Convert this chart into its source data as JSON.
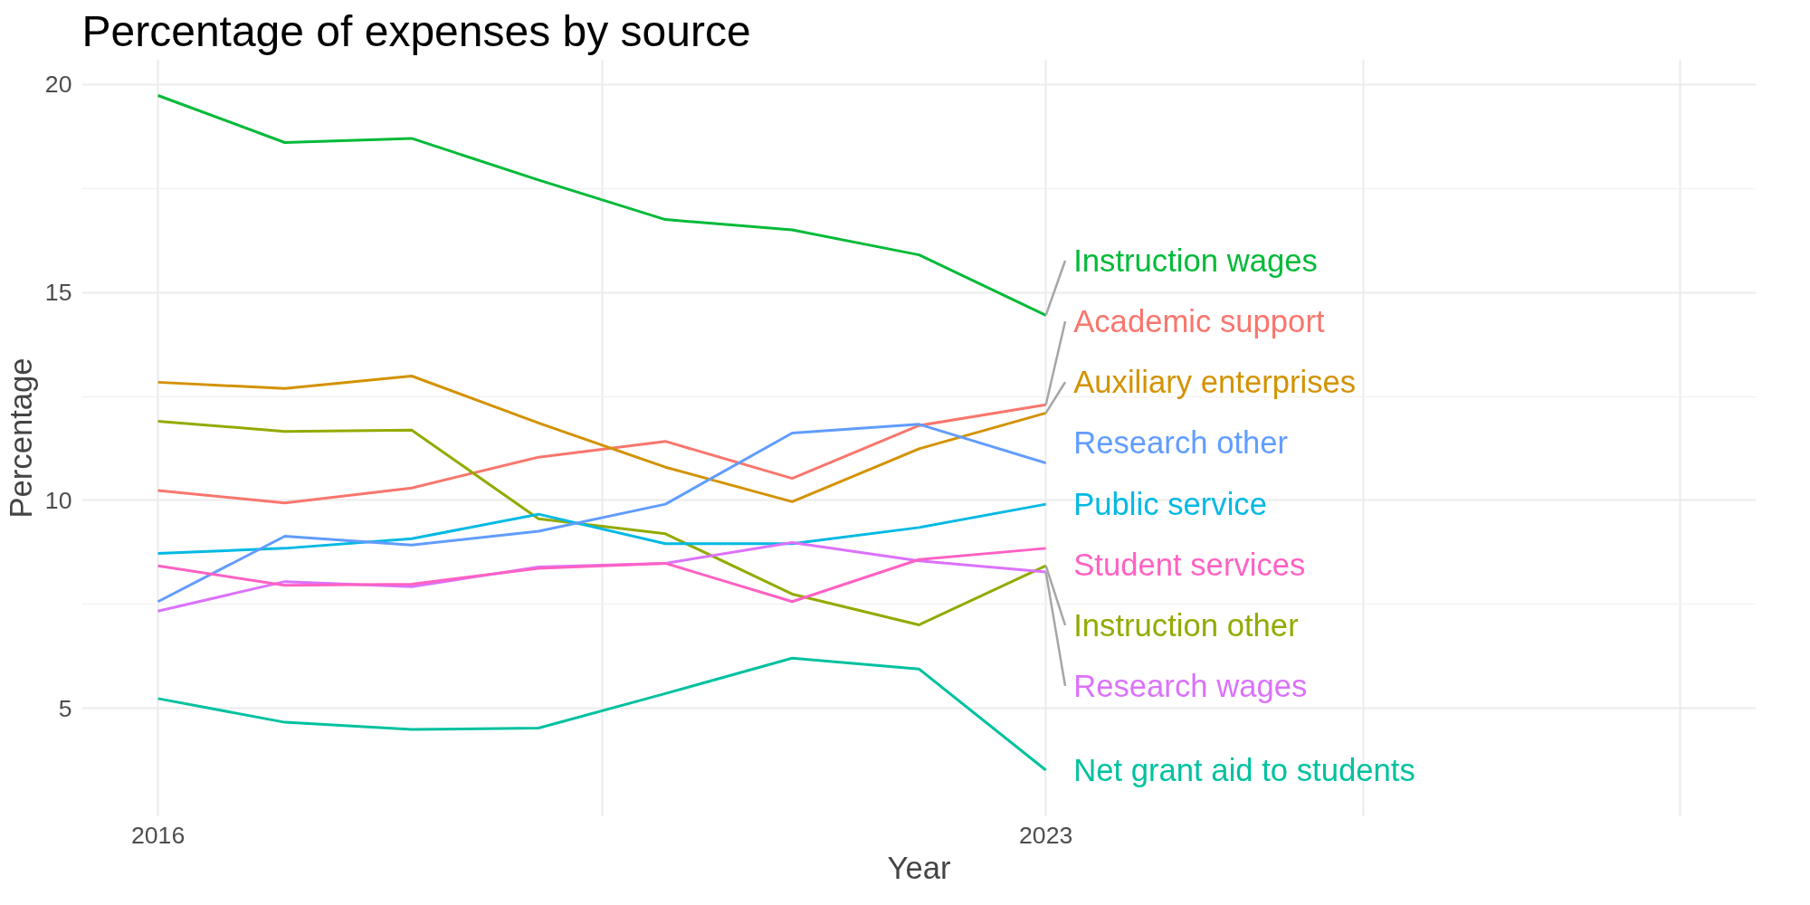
{
  "chart_data": {
    "type": "line",
    "title": "Percentage of expenses by source",
    "xlabel": "Year",
    "ylabel": "Percentage",
    "x": [
      2016,
      2017,
      2018,
      2019,
      2020,
      2021,
      2022,
      2023
    ],
    "xlim": [
      2015.4,
      2028.6
    ],
    "ylim": [
      2.4,
      20.6
    ],
    "xticks": [
      2016,
      {
        "value": 2019.5,
        "label": null
      },
      2023,
      {
        "value": 2025.5,
        "label": null
      },
      {
        "value": 2028,
        "label": null
      }
    ],
    "yticks": [
      5,
      10,
      15,
      20
    ],
    "grid": true,
    "series": [
      {
        "name": "Academic support",
        "color": "#f8766d",
        "values": [
          10.24,
          9.94,
          10.3,
          11.04,
          11.42,
          10.53,
          11.8,
          12.3
        ]
      },
      {
        "name": "Auxiliary enterprises",
        "color": "#d39200",
        "values": [
          12.84,
          12.69,
          12.99,
          11.86,
          10.8,
          9.97,
          11.24,
          12.1
        ]
      },
      {
        "name": "Instruction other",
        "color": "#93aa00",
        "values": [
          11.9,
          11.66,
          11.69,
          9.56,
          9.2,
          7.75,
          7.01,
          8.43
        ]
      },
      {
        "name": "Instruction wages",
        "color": "#00ba38",
        "values": [
          19.73,
          18.6,
          18.7,
          17.7,
          16.75,
          16.5,
          15.9,
          14.45
        ]
      },
      {
        "name": "Net grant aid to students",
        "color": "#00c19f",
        "values": [
          5.24,
          4.67,
          4.5,
          4.53,
          5.36,
          6.21,
          5.95,
          3.52
        ]
      },
      {
        "name": "Public service",
        "color": "#00b9e3",
        "values": [
          8.73,
          8.85,
          9.08,
          9.67,
          8.96,
          8.96,
          9.35,
          9.91
        ]
      },
      {
        "name": "Research other",
        "color": "#619cff",
        "values": [
          7.57,
          9.14,
          8.93,
          9.26,
          9.91,
          11.62,
          11.83,
          10.9
        ]
      },
      {
        "name": "Research wages",
        "color": "#db72fb",
        "values": [
          7.34,
          8.05,
          7.93,
          8.4,
          8.49,
          8.99,
          8.55,
          8.28
        ]
      },
      {
        "name": "Student services",
        "color": "#ff61c3",
        "values": [
          8.43,
          7.96,
          7.99,
          8.37,
          8.49,
          7.57,
          8.58,
          8.85
        ]
      }
    ]
  }
}
